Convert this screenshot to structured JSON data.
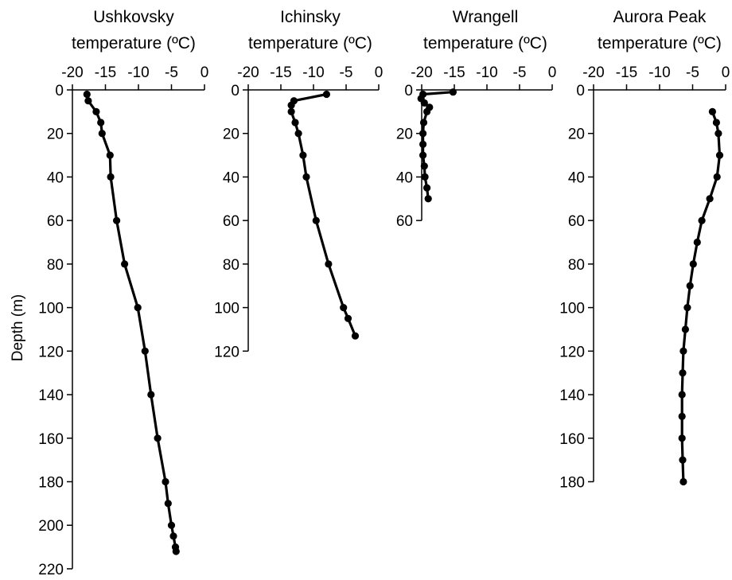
{
  "colors": {
    "line": "#000000",
    "marker": "#000000",
    "background": "#ffffff"
  },
  "ylabel": "Depth (m)",
  "chart_data": [
    {
      "type": "line",
      "title": "Ushkovsky",
      "xlabel": "temperature (ºC)",
      "ylabel": "Depth (m)",
      "xlim": [
        -20,
        0
      ],
      "xticks": [
        "-20",
        "-15",
        "-10",
        "-5",
        "0"
      ],
      "ylim": [
        0,
        220
      ],
      "yticks": [
        "0",
        "20",
        "40",
        "60",
        "80",
        "100",
        "120",
        "140",
        "160",
        "180",
        "200",
        "220"
      ],
      "grid": false,
      "series": [
        {
          "points": [
            [
              -17.8,
              2
            ],
            [
              -17.6,
              5
            ],
            [
              -16.4,
              10
            ],
            [
              -15.7,
              15
            ],
            [
              -15.5,
              20
            ],
            [
              -14.3,
              30
            ],
            [
              -14.2,
              40
            ],
            [
              -13.3,
              60
            ],
            [
              -12.1,
              80
            ],
            [
              -10.1,
              100
            ],
            [
              -9.0,
              120
            ],
            [
              -8.1,
              140
            ],
            [
              -7.1,
              160
            ],
            [
              -5.9,
              180
            ],
            [
              -5.5,
              190
            ],
            [
              -5.0,
              200
            ],
            [
              -4.7,
              205
            ],
            [
              -4.4,
              210
            ],
            [
              -4.3,
              212
            ]
          ]
        }
      ]
    },
    {
      "type": "line",
      "title": "Ichinsky",
      "xlabel": "temperature (ºC)",
      "xlim": [
        -20,
        0
      ],
      "xticks": [
        "-20",
        "-15",
        "-10",
        "-5",
        "0"
      ],
      "ylim": [
        0,
        120
      ],
      "yticks": [
        "0",
        "20",
        "40",
        "60",
        "80",
        "100",
        "120"
      ],
      "grid": false,
      "series": [
        {
          "points": [
            [
              -8.0,
              2
            ],
            [
              -13.0,
              5
            ],
            [
              -13.4,
              7
            ],
            [
              -13.4,
              10
            ],
            [
              -12.8,
              15
            ],
            [
              -12.3,
              20
            ],
            [
              -11.6,
              30
            ],
            [
              -11.1,
              40
            ],
            [
              -9.6,
              60
            ],
            [
              -7.7,
              80
            ],
            [
              -5.4,
              100
            ],
            [
              -4.7,
              105
            ],
            [
              -3.6,
              113
            ]
          ]
        }
      ]
    },
    {
      "type": "line",
      "title": "Wrangell",
      "xlabel": "temperature (ºC)",
      "xlim": [
        -20,
        0
      ],
      "xticks": [
        "-20",
        "-15",
        "-10",
        "-5",
        "0"
      ],
      "ylim": [
        0,
        60
      ],
      "yticks": [
        "0",
        "20",
        "40",
        "60"
      ],
      "grid": false,
      "series": [
        {
          "points": [
            [
              -15.2,
              1
            ],
            [
              -19.8,
              2
            ],
            [
              -20.1,
              4
            ],
            [
              -19.6,
              6
            ],
            [
              -18.8,
              8
            ],
            [
              -19.2,
              10
            ],
            [
              -19.7,
              15
            ],
            [
              -19.8,
              20
            ],
            [
              -19.8,
              25
            ],
            [
              -19.8,
              30
            ],
            [
              -19.6,
              35
            ],
            [
              -19.5,
              40
            ],
            [
              -19.2,
              45
            ],
            [
              -19.0,
              50
            ]
          ]
        }
      ]
    },
    {
      "type": "line",
      "title": "Aurora Peak",
      "xlabel": "temperature (ºC)",
      "xlim": [
        -20,
        0
      ],
      "xticks": [
        "-20",
        "-15",
        "-10",
        "-5",
        "0"
      ],
      "ylim": [
        0,
        180
      ],
      "yticks": [
        "0",
        "20",
        "40",
        "60",
        "80",
        "100",
        "120",
        "140",
        "160",
        "180"
      ],
      "grid": false,
      "series": [
        {
          "points": [
            [
              -2.0,
              10
            ],
            [
              -1.4,
              15
            ],
            [
              -1.1,
              20
            ],
            [
              -0.9,
              30
            ],
            [
              -1.3,
              40
            ],
            [
              -2.4,
              50
            ],
            [
              -3.6,
              60
            ],
            [
              -4.3,
              70
            ],
            [
              -4.9,
              80
            ],
            [
              -5.4,
              90
            ],
            [
              -5.8,
              100
            ],
            [
              -6.1,
              110
            ],
            [
              -6.4,
              120
            ],
            [
              -6.5,
              130
            ],
            [
              -6.6,
              140
            ],
            [
              -6.6,
              150
            ],
            [
              -6.6,
              160
            ],
            [
              -6.5,
              170
            ],
            [
              -6.4,
              180
            ]
          ]
        }
      ]
    }
  ]
}
